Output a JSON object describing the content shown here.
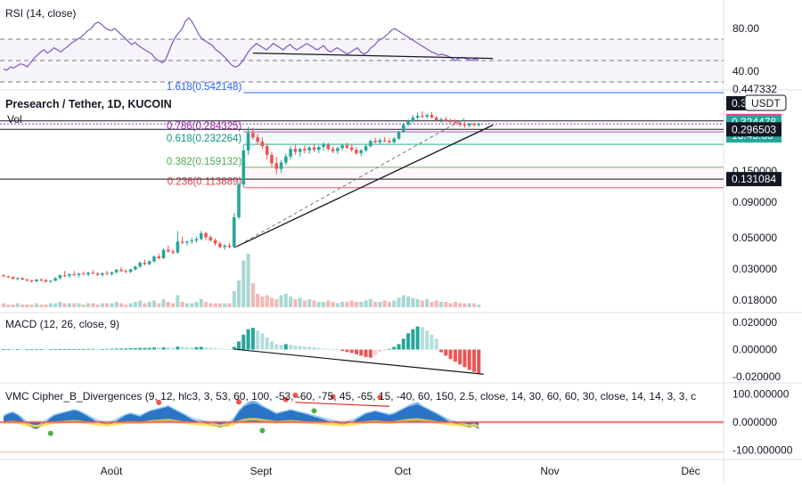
{
  "header": {
    "title": "Presearch / Tether, 1D, KUCOIN",
    "volume_label": "Vol"
  },
  "panes": {
    "rsi_label": "RSI (14, close)",
    "macd_label": "MACD (12, 26, close, 9)",
    "vmc_label": "VMC Cipher_B_Divergences (9, 12, hlc3, 3, 53, 60, 100, -53, -60, -75, 45, -65, 15, -40, 60, 150, 2.5, close, 14, 30, 60, 60, 30, close, 14, 14, 3, 3, c"
  },
  "price_axis": {
    "currency_badge": "USDT",
    "ticks": [
      "0.090000",
      "0.050000",
      "0.030000",
      "0.018000"
    ],
    "partial_tick": "0.150000",
    "top_partial_label": "0.447332",
    "top_partial_label_2": "0.3",
    "tags": [
      {
        "label": "0.340481",
        "bg": "#f23b92",
        "fg": "#ffffff"
      },
      {
        "label": "0.324478",
        "bg": "#26a69a",
        "fg": "#ffffff"
      },
      {
        "label": "13:45:33",
        "bg": "#26a69a",
        "fg": "#ffffff"
      },
      {
        "label": "0.296503",
        "bg": "#131722",
        "fg": "#ffffff"
      },
      {
        "label": "0.131084",
        "bg": "#131722",
        "fg": "#ffffff"
      }
    ]
  },
  "rsi_axis": {
    "ticks": [
      "80.00",
      "40.00"
    ]
  },
  "macd_axis": {
    "ticks": [
      "0.020000",
      "0.000000",
      "-0.020000"
    ]
  },
  "vmc_axis": {
    "ticks": [
      "100.000000",
      "0.000000",
      "-100.000000"
    ]
  },
  "time_axis": {
    "labels": [
      "Août",
      "Sept",
      "Oct",
      "Nov",
      "Déc"
    ]
  },
  "fib_levels": [
    {
      "label": "1.618(0.542148)",
      "color": "#2962ff"
    },
    {
      "label": "0.786(0.284325)",
      "color": "#9c27b0"
    },
    {
      "label": "0.618(0.232264)",
      "color": "#089981"
    },
    {
      "label": "0.382(0.159132)",
      "color": "#4caf50"
    },
    {
      "label": "0.236(0.113889)",
      "color": "#f23645"
    }
  ],
  "colors": {
    "up": "#26a69a",
    "down": "#ef5350",
    "rsi_line": "#7e57c2",
    "macd_up": "#26a69a",
    "macd_down": "#ef5350",
    "vmc_wave": "#1565c0"
  },
  "chart_data": [
    {
      "type": "line",
      "name": "RSI",
      "title": "RSI (14, close)",
      "ylim": [
        30,
        95
      ],
      "x_labels": [
        "Août",
        "Sept",
        "Oct",
        "Nov",
        "Déc"
      ],
      "values": [
        42,
        41,
        44,
        43,
        45,
        47,
        46,
        44,
        48,
        52,
        55,
        58,
        60,
        57,
        59,
        62,
        60,
        58,
        61,
        63,
        66,
        68,
        70,
        72,
        75,
        78,
        80,
        84,
        86,
        84,
        81,
        79,
        78,
        80,
        77,
        74,
        71,
        68,
        65,
        67,
        64,
        62,
        60,
        58,
        56,
        52,
        50,
        48,
        50,
        58,
        66,
        72,
        76,
        80,
        87,
        90,
        86,
        80,
        74,
        70,
        68,
        66,
        64,
        60,
        58,
        55,
        52,
        48,
        45,
        44,
        46,
        50,
        55,
        60,
        63,
        66,
        64,
        62,
        60,
        63,
        66,
        64,
        62,
        60,
        63,
        65,
        62,
        60,
        62,
        64,
        66,
        64,
        62,
        60,
        62,
        64,
        60,
        58,
        60,
        62,
        60,
        58,
        56,
        58,
        60,
        62,
        58,
        56,
        58,
        62,
        64,
        68,
        70,
        72,
        75,
        78,
        80,
        78,
        76,
        74,
        72,
        70,
        68,
        66,
        64,
        62,
        60,
        58,
        57,
        55,
        56,
        55,
        54,
        52,
        50,
        52,
        53,
        52,
        51,
        50,
        52,
        50
      ],
      "levels": [
        70,
        50,
        30
      ]
    },
    {
      "type": "line",
      "name": "Price",
      "title": "Presearch / Tether, 1D, KUCOIN",
      "log_scale": true,
      "ylim": [
        0.016,
        0.55
      ],
      "x_labels": [
        "Août",
        "Sept",
        "Oct",
        "Nov",
        "Déc"
      ],
      "candles": [
        [
          0.027,
          0.0275,
          0.0262,
          0.0266
        ],
        [
          0.0266,
          0.027,
          0.0258,
          0.0262
        ],
        [
          0.0262,
          0.0266,
          0.0252,
          0.0255
        ],
        [
          0.0255,
          0.0262,
          0.0248,
          0.0258
        ],
        [
          0.0258,
          0.0262,
          0.025,
          0.0252
        ],
        [
          0.0252,
          0.0256,
          0.0244,
          0.0248
        ],
        [
          0.0248,
          0.0252,
          0.024,
          0.0245
        ],
        [
          0.0245,
          0.0255,
          0.0242,
          0.0252
        ],
        [
          0.0252,
          0.0258,
          0.0245,
          0.025
        ],
        [
          0.025,
          0.0254,
          0.024,
          0.0244
        ],
        [
          0.0244,
          0.025,
          0.0238,
          0.0247
        ],
        [
          0.0247,
          0.0262,
          0.0245,
          0.0258
        ],
        [
          0.0258,
          0.0275,
          0.0252,
          0.027
        ],
        [
          0.027,
          0.029,
          0.0262,
          0.0268
        ],
        [
          0.0268,
          0.028,
          0.0258,
          0.0275
        ],
        [
          0.0275,
          0.029,
          0.0268,
          0.0272
        ],
        [
          0.0272,
          0.0282,
          0.0262,
          0.0278
        ],
        [
          0.0278,
          0.0288,
          0.027,
          0.0274
        ],
        [
          0.0274,
          0.0286,
          0.0266,
          0.0282
        ],
        [
          0.0282,
          0.0295,
          0.0275,
          0.0278
        ],
        [
          0.0278,
          0.0285,
          0.0268,
          0.0272
        ],
        [
          0.0272,
          0.0282,
          0.0264,
          0.028
        ],
        [
          0.028,
          0.0292,
          0.0272,
          0.0276
        ],
        [
          0.0276,
          0.0286,
          0.0268,
          0.0284
        ],
        [
          0.0284,
          0.03,
          0.0278,
          0.0296
        ],
        [
          0.0296,
          0.031,
          0.0285,
          0.029
        ],
        [
          0.029,
          0.0298,
          0.028,
          0.0286
        ],
        [
          0.0286,
          0.03,
          0.028,
          0.0298
        ],
        [
          0.0298,
          0.0316,
          0.0292,
          0.0312
        ],
        [
          0.0312,
          0.034,
          0.0305,
          0.0332
        ],
        [
          0.0332,
          0.035,
          0.0318,
          0.0325
        ],
        [
          0.0325,
          0.0345,
          0.0318,
          0.034
        ],
        [
          0.034,
          0.0375,
          0.0332,
          0.0368
        ],
        [
          0.0368,
          0.0385,
          0.035,
          0.0358
        ],
        [
          0.0358,
          0.042,
          0.0352,
          0.041
        ],
        [
          0.041,
          0.044,
          0.0392,
          0.04
        ],
        [
          0.04,
          0.0415,
          0.038,
          0.0392
        ],
        [
          0.0392,
          0.056,
          0.0385,
          0.047
        ],
        [
          0.047,
          0.051,
          0.045,
          0.0462
        ],
        [
          0.0462,
          0.048,
          0.044,
          0.047
        ],
        [
          0.047,
          0.05,
          0.0452,
          0.0478
        ],
        [
          0.0478,
          0.051,
          0.046,
          0.049
        ],
        [
          0.049,
          0.056,
          0.048,
          0.054
        ],
        [
          0.054,
          0.0552,
          0.048,
          0.0505
        ],
        [
          0.0505,
          0.052,
          0.047,
          0.048
        ],
        [
          0.048,
          0.0495,
          0.044,
          0.0455
        ],
        [
          0.0455,
          0.047,
          0.042,
          0.043
        ],
        [
          0.043,
          0.045,
          0.041,
          0.044
        ],
        [
          0.044,
          0.046,
          0.042,
          0.043
        ],
        [
          0.043,
          0.075,
          0.0425,
          0.07
        ],
        [
          0.07,
          0.125,
          0.068,
          0.12
        ],
        [
          0.12,
          0.23,
          0.115,
          0.21
        ],
        [
          0.21,
          0.31,
          0.195,
          0.28
        ],
        [
          0.28,
          0.305,
          0.25,
          0.26
        ],
        [
          0.26,
          0.275,
          0.23,
          0.242
        ],
        [
          0.242,
          0.26,
          0.215,
          0.225
        ],
        [
          0.225,
          0.235,
          0.18,
          0.195
        ],
        [
          0.195,
          0.205,
          0.16,
          0.17
        ],
        [
          0.17,
          0.19,
          0.142,
          0.155
        ],
        [
          0.155,
          0.18,
          0.145,
          0.172
        ],
        [
          0.172,
          0.2,
          0.165,
          0.19
        ],
        [
          0.19,
          0.225,
          0.18,
          0.215
        ],
        [
          0.215,
          0.23,
          0.195,
          0.205
        ],
        [
          0.205,
          0.22,
          0.19,
          0.215
        ],
        [
          0.215,
          0.228,
          0.2,
          0.21
        ],
        [
          0.21,
          0.225,
          0.198,
          0.22
        ],
        [
          0.22,
          0.235,
          0.205,
          0.212
        ],
        [
          0.212,
          0.228,
          0.2,
          0.222
        ],
        [
          0.222,
          0.24,
          0.21,
          0.23
        ],
        [
          0.23,
          0.238,
          0.208,
          0.215
        ],
        [
          0.215,
          0.225,
          0.2,
          0.208
        ],
        [
          0.208,
          0.222,
          0.198,
          0.218
        ],
        [
          0.218,
          0.235,
          0.21,
          0.228
        ],
        [
          0.228,
          0.238,
          0.215,
          0.22
        ],
        [
          0.22,
          0.23,
          0.205,
          0.212
        ],
        [
          0.212,
          0.222,
          0.195,
          0.2
        ],
        [
          0.2,
          0.215,
          0.19,
          0.21
        ],
        [
          0.21,
          0.23,
          0.205,
          0.225
        ],
        [
          0.225,
          0.25,
          0.22,
          0.245
        ],
        [
          0.245,
          0.258,
          0.235,
          0.24
        ],
        [
          0.24,
          0.255,
          0.23,
          0.248
        ],
        [
          0.248,
          0.262,
          0.24,
          0.245
        ],
        [
          0.245,
          0.255,
          0.235,
          0.24
        ],
        [
          0.24,
          0.26,
          0.235,
          0.255
        ],
        [
          0.255,
          0.29,
          0.25,
          0.285
        ],
        [
          0.285,
          0.33,
          0.28,
          0.32
        ],
        [
          0.32,
          0.35,
          0.31,
          0.34
        ],
        [
          0.34,
          0.375,
          0.33,
          0.36
        ],
        [
          0.36,
          0.39,
          0.345,
          0.37
        ],
        [
          0.37,
          0.4,
          0.355,
          0.365
        ],
        [
          0.365,
          0.385,
          0.35,
          0.375
        ],
        [
          0.375,
          0.395,
          0.355,
          0.36
        ],
        [
          0.36,
          0.37,
          0.335,
          0.345
        ],
        [
          0.345,
          0.36,
          0.33,
          0.35
        ],
        [
          0.35,
          0.365,
          0.335,
          0.34
        ],
        [
          0.34,
          0.355,
          0.325,
          0.335
        ],
        [
          0.335,
          0.35,
          0.32,
          0.33
        ],
        [
          0.33,
          0.342,
          0.31,
          0.32
        ],
        [
          0.32,
          0.335,
          0.305,
          0.315
        ],
        [
          0.315,
          0.33,
          0.305,
          0.325
        ],
        [
          0.325,
          0.332,
          0.31,
          0.318
        ],
        [
          0.318,
          0.33,
          0.31,
          0.3245
        ]
      ],
      "volume": [
        3,
        2,
        2,
        3,
        2,
        2,
        2,
        3,
        2,
        2,
        3,
        3,
        4,
        3,
        3,
        3,
        3,
        2,
        3,
        3,
        2,
        3,
        3,
        3,
        4,
        3,
        2,
        3,
        4,
        5,
        3,
        4,
        5,
        3,
        6,
        4,
        3,
        9,
        4,
        3,
        3,
        4,
        6,
        4,
        3,
        3,
        3,
        3,
        3,
        12,
        20,
        35,
        40,
        18,
        10,
        8,
        9,
        7,
        6,
        9,
        10,
        8,
        6,
        7,
        5,
        6,
        5,
        4,
        4,
        5,
        4,
        3,
        4,
        4,
        5,
        4,
        4,
        5,
        6,
        4,
        4,
        5,
        4,
        5,
        7,
        9,
        8,
        7,
        6,
        5,
        6,
        4,
        5,
        4,
        4,
        3,
        4,
        3,
        3,
        3,
        3,
        2
      ],
      "fib_levels": [
        {
          "ratio": 1.618,
          "price": 0.542148
        },
        {
          "ratio": 0.786,
          "price": 0.284325
        },
        {
          "ratio": 0.618,
          "price": 0.232264
        },
        {
          "ratio": 0.382,
          "price": 0.159132
        },
        {
          "ratio": 0.236,
          "price": 0.113889
        }
      ],
      "horizontal_lines": [
        0.340481,
        0.324478,
        0.296503,
        0.131084
      ],
      "last_price": 0.324478
    },
    {
      "type": "bar",
      "name": "MACD",
      "title": "MACD (12, 26, close, 9)",
      "ylim": [
        -0.022,
        0.024
      ],
      "histogram": [
        0.0003,
        0.0003,
        0.0002,
        0.0002,
        0.0001,
        0.0001,
        0.0001,
        0.0002,
        0.0002,
        0.0001,
        0.0001,
        0.0002,
        0.0003,
        0.0003,
        0.0004,
        0.0004,
        0.0004,
        0.0004,
        0.0005,
        0.0005,
        0.0004,
        0.0004,
        0.0005,
        0.0006,
        0.0007,
        0.0008,
        0.0008,
        0.0009,
        0.001,
        0.0012,
        0.0012,
        0.0013,
        0.0015,
        0.0014,
        0.0016,
        0.0015,
        0.0013,
        0.0022,
        0.002,
        0.0017,
        0.0016,
        0.0017,
        0.002,
        0.0017,
        0.0013,
        0.0009,
        0.0006,
        0.0004,
        0.0002,
        0.002,
        0.006,
        0.011,
        0.015,
        0.016,
        0.014,
        0.012,
        0.009,
        0.006,
        0.004,
        0.0035,
        0.004,
        0.0035,
        0.003,
        0.0025,
        0.0022,
        0.002,
        0.0016,
        0.0012,
        0.0008,
        0.0006,
        0.0004,
        0.0001,
        -0.001,
        -0.0018,
        -0.0025,
        -0.0035,
        -0.0045,
        -0.0055,
        -0.006,
        -0.004,
        -0.002,
        -0.001,
        0.0005,
        0.002,
        0.004,
        0.008,
        0.012,
        0.015,
        0.017,
        0.0165,
        0.014,
        0.011,
        0.008,
        -0.002,
        -0.0045,
        -0.007,
        -0.009,
        -0.011,
        -0.013,
        -0.015,
        -0.0165,
        -0.0175
      ]
    },
    {
      "type": "area",
      "name": "VMC Cipher B",
      "title": "VMC Cipher_B_Divergences",
      "ylim": [
        -120,
        120
      ],
      "wave1": [
        20,
        30,
        35,
        25,
        10,
        -10,
        -20,
        -25,
        -15,
        0,
        15,
        25,
        30,
        35,
        40,
        45,
        40,
        30,
        20,
        10,
        0,
        -5,
        -10,
        -5,
        5,
        15,
        25,
        30,
        25,
        20,
        30,
        40,
        45,
        50,
        55,
        60,
        50,
        40,
        30,
        20,
        10,
        5,
        0,
        -5,
        -10,
        -15,
        -20,
        -15,
        -10,
        10,
        40,
        60,
        70,
        75,
        70,
        60,
        50,
        40,
        30,
        35,
        40,
        45,
        40,
        35,
        30,
        25,
        20,
        15,
        10,
        5,
        0,
        -5,
        -10,
        -5,
        0,
        10,
        20,
        30,
        35,
        40,
        35,
        30,
        25,
        30,
        40,
        50,
        60,
        65,
        70,
        60,
        50,
        40,
        30,
        20,
        10,
        0,
        -5,
        -10,
        -15,
        -20,
        -15,
        -25
      ],
      "ticks": [
        100,
        0,
        -100
      ]
    }
  ]
}
